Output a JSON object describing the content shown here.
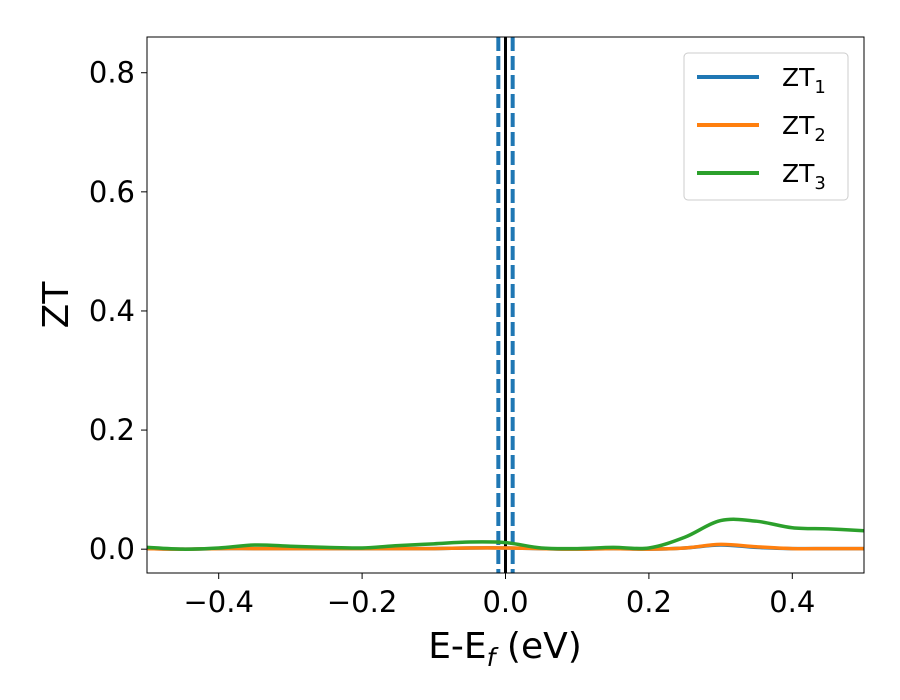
{
  "chart_data": {
    "type": "line",
    "title": "",
    "xlabel": "E-E",
    "xlabel_sub": "f",
    "xlabel_unit": " (eV)",
    "ylabel": "ZT",
    "xlim": [
      -0.5,
      0.5
    ],
    "ylim": [
      -0.04,
      0.86
    ],
    "xticks": [
      -0.4,
      -0.2,
      0.0,
      0.2,
      0.4
    ],
    "xtick_labels": [
      "−0.4",
      "−0.2",
      "0.0",
      "0.2",
      "0.4"
    ],
    "yticks": [
      0.0,
      0.2,
      0.4,
      0.6,
      0.8
    ],
    "ytick_labels": [
      "0.0",
      "0.2",
      "0.4",
      "0.6",
      "0.8"
    ],
    "grid": false,
    "legend_position": "top-right",
    "vertical_lines": [
      {
        "x": -0.01,
        "style": "dashed",
        "color": "#1f77b4"
      },
      {
        "x": 0.01,
        "style": "dashed",
        "color": "#1f77b4"
      },
      {
        "x": 0.0,
        "style": "solid",
        "color": "#000000"
      }
    ],
    "x": [
      -0.5,
      -0.45,
      -0.4,
      -0.35,
      -0.3,
      -0.25,
      -0.2,
      -0.15,
      -0.1,
      -0.05,
      0.0,
      0.05,
      0.1,
      0.15,
      0.2,
      0.25,
      0.3,
      0.35,
      0.4,
      0.45,
      0.5
    ],
    "series": [
      {
        "name": "ZT",
        "name_sub": "1",
        "color": "#1f77b4",
        "values": [
          0.001,
          0.0,
          0.001,
          0.001,
          0.001,
          0.001,
          0.001,
          0.001,
          0.001,
          0.002,
          0.002,
          0.001,
          0.0,
          0.001,
          0.0,
          0.002,
          0.007,
          0.003,
          0.001,
          0.001,
          0.001
        ]
      },
      {
        "name": "ZT",
        "name_sub": "2",
        "color": "#ff7f0e",
        "values": [
          0.001,
          0.0,
          0.001,
          0.001,
          0.001,
          0.001,
          0.001,
          0.001,
          0.001,
          0.002,
          0.002,
          0.001,
          0.0,
          0.001,
          0.0,
          0.002,
          0.008,
          0.004,
          0.001,
          0.001,
          0.001
        ]
      },
      {
        "name": "ZT",
        "name_sub": "3",
        "color": "#2ca02c",
        "values": [
          0.003,
          0.0,
          0.002,
          0.007,
          0.005,
          0.003,
          0.002,
          0.006,
          0.009,
          0.012,
          0.011,
          0.002,
          0.001,
          0.003,
          0.002,
          0.02,
          0.048,
          0.047,
          0.036,
          0.034,
          0.031
        ]
      }
    ]
  }
}
